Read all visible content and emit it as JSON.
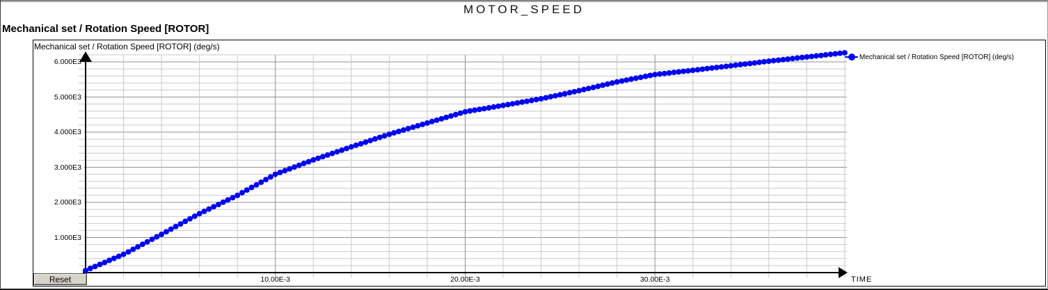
{
  "page": {
    "title": "MOTOR_SPEED"
  },
  "chart": {
    "heading": "Mechanical set / Rotation Speed [ROTOR]",
    "plot_label": "Mechanical set / Rotation Speed [ROTOR] (deg/s)",
    "legend_label": "Mechanical set / Rotation Speed [ROTOR] (deg/s)",
    "reset_button_label": "Reset",
    "time_axis_label": "TIME",
    "accent_color": "#0202f2"
  },
  "chart_data": {
    "type": "scatter",
    "title": "MOTOR_SPEED",
    "xlabel": "TIME",
    "ylabel": "Mechanical set / Rotation Speed [ROTOR] (deg/s)",
    "xlim": [
      0,
      0.0401
    ],
    "ylim": [
      0,
      6200
    ],
    "grid": "major+minor",
    "legend_position": "right-of-plot",
    "x_ticks": [
      0.01,
      0.02,
      0.03
    ],
    "x_tick_labels": [
      "10.00E-3",
      "20.00E-3",
      "30.00E-3"
    ],
    "y_ticks": [
      1000,
      2000,
      3000,
      4000,
      5000,
      6000
    ],
    "y_tick_labels": [
      "1.000E3",
      "2.000E3",
      "3.000E3",
      "4.000E3",
      "5.000E3",
      "6.000E3"
    ],
    "x_minor_step": 0.002,
    "y_minor_step": 200,
    "series": [
      {
        "name": "Mechanical set / Rotation Speed [ROTOR] (deg/s)",
        "color": "#0202f2",
        "marker": "filled-circle",
        "t_start": 0,
        "t_step": 0.00025,
        "values": [
          60,
          118,
          175,
          233,
          290,
          348,
          405,
          463,
          520,
          591,
          663,
          734,
          805,
          876,
          948,
          1019,
          1090,
          1164,
          1238,
          1311,
          1385,
          1459,
          1533,
          1606,
          1680,
          1745,
          1810,
          1875,
          1940,
          2005,
          2070,
          2135,
          2200,
          2275,
          2350,
          2425,
          2500,
          2575,
          2650,
          2725,
          2800,
          2851,
          2903,
          2954,
          3005,
          3056,
          3108,
          3159,
          3210,
          3256,
          3303,
          3349,
          3395,
          3441,
          3488,
          3534,
          3580,
          3625,
          3670,
          3715,
          3760,
          3805,
          3850,
          3895,
          3940,
          3980,
          4020,
          4060,
          4100,
          4140,
          4180,
          4220,
          4260,
          4300,
          4340,
          4380,
          4420,
          4460,
          4500,
          4540,
          4580,
          4603,
          4625,
          4648,
          4670,
          4693,
          4715,
          4738,
          4760,
          4784,
          4808,
          4831,
          4855,
          4879,
          4903,
          4926,
          4950,
          4979,
          5008,
          5036,
          5065,
          5094,
          5123,
          5151,
          5180,
          5211,
          5243,
          5274,
          5305,
          5336,
          5368,
          5399,
          5430,
          5456,
          5483,
          5509,
          5535,
          5561,
          5588,
          5614,
          5640,
          5655,
          5670,
          5685,
          5700,
          5715,
          5730,
          5745,
          5760,
          5776,
          5793,
          5809,
          5825,
          5841,
          5858,
          5874,
          5890,
          5906,
          5923,
          5939,
          5955,
          5971,
          5988,
          6004,
          6020,
          6035,
          6050,
          6065,
          6080,
          6095,
          6110,
          6125,
          6140,
          6155,
          6170,
          6185,
          6200,
          6215,
          6230,
          6245,
          6260
        ]
      }
    ]
  }
}
